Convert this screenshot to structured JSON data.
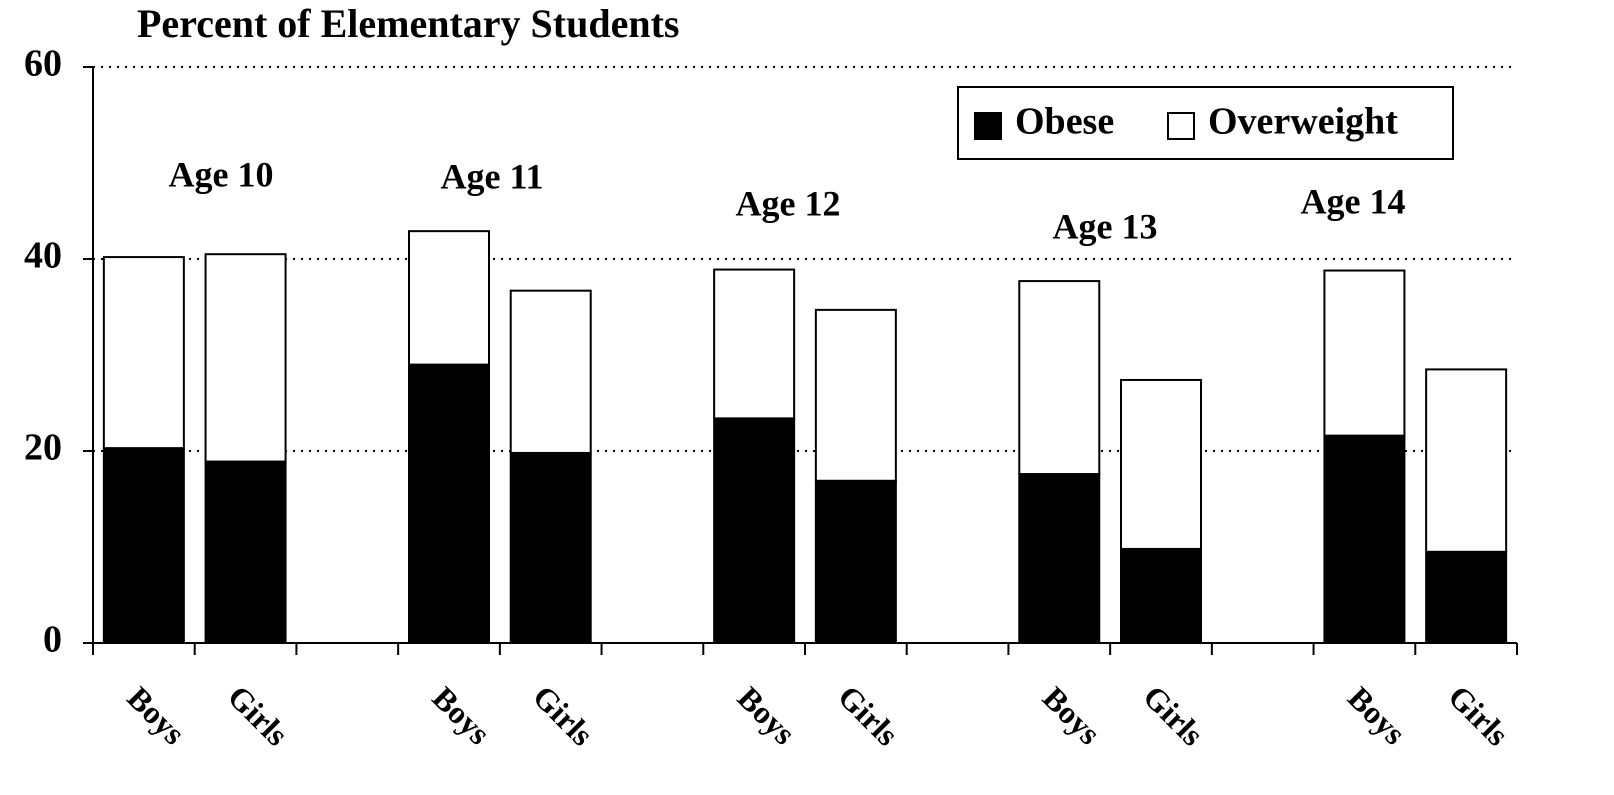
{
  "chart_data": {
    "type": "stacked-bar",
    "title": "Percent of Elementary Students",
    "categories": [
      "Boys",
      "Girls",
      null,
      "Boys",
      "Girls",
      null,
      "Boys",
      "Girls",
      null,
      "Boys",
      "Girls",
      null,
      "Boys",
      "Girls"
    ],
    "group_labels": [
      "Age 10",
      "Age 11",
      "Age 12",
      "Age 13",
      "Age 14"
    ],
    "series": [
      {
        "name": "Obese",
        "color": "#000000",
        "values": [
          20.3,
          18.9,
          null,
          29.0,
          19.8,
          null,
          23.4,
          16.9,
          null,
          17.6,
          9.8,
          null,
          21.6,
          9.5
        ]
      },
      {
        "name": "Overweight",
        "color": "#ffffff",
        "values": [
          19.9,
          21.6,
          null,
          13.9,
          16.9,
          null,
          15.5,
          17.8,
          null,
          20.1,
          17.6,
          null,
          17.2,
          19.0
        ]
      }
    ],
    "ylim": [
      0,
      60
    ],
    "yticks": [
      0,
      20,
      40,
      60
    ],
    "grid": true,
    "legend": "upper right"
  }
}
